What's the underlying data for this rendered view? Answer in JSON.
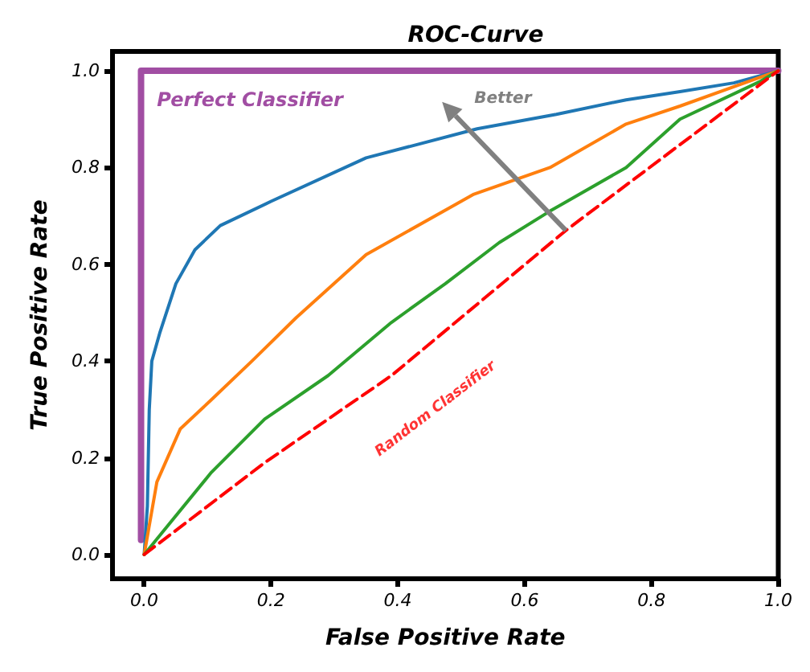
{
  "chart_data": {
    "type": "line",
    "title": "ROC-Curve",
    "xlabel": "False Positive Rate",
    "ylabel": "True Positive Rate",
    "xlim": [
      -0.05,
      1.0
    ],
    "ylim": [
      -0.05,
      1.04
    ],
    "xticks": [
      {
        "value": 0,
        "label": "0.0"
      },
      0.2,
      0.4,
      0.6,
      0.8,
      {
        "value": 1,
        "label": "1.0"
      }
    ],
    "yticks": [
      {
        "value": 0,
        "label": "0.0"
      },
      0.2,
      0.4,
      0.6,
      0.8,
      {
        "value": 1,
        "label": "1.0"
      }
    ],
    "grid": false,
    "legend": false,
    "marker": "none",
    "annotations": [
      {
        "text": "Better",
        "x": 0.665,
        "y": 0.67
      }
    ],
    "series": [
      {
        "name": "Perfect Classifier",
        "color": "#a14ea3",
        "x": [
          -0.005,
          -0.005,
          1.0
        ],
        "values": [
          0.03,
          1.0,
          1.0
        ]
      },
      {
        "color": "#1f77b4",
        "x": [
          0,
          0.005,
          0.008,
          0.012,
          0.025,
          0.05,
          0.08,
          0.12,
          0.2,
          0.35,
          0.525,
          0.65,
          0.76,
          0.845,
          0.93,
          1.0
        ],
        "values": [
          0,
          0.1,
          0.3,
          0.4,
          0.46,
          0.56,
          0.63,
          0.68,
          0.73,
          0.82,
          0.88,
          0.91,
          0.94,
          0.957,
          0.975,
          1.0
        ]
      },
      {
        "color": "#ff7f0e",
        "x": [
          0,
          0.02,
          0.057,
          0.106,
          0.17,
          0.24,
          0.35,
          0.52,
          0.64,
          0.76,
          0.845,
          0.93,
          1.0
        ],
        "values": [
          0,
          0.15,
          0.26,
          0.32,
          0.4,
          0.49,
          0.62,
          0.745,
          0.8,
          0.89,
          0.927,
          0.967,
          1.0
        ]
      },
      {
        "color": "#2ca02c",
        "x": [
          0,
          0.025,
          0.106,
          0.19,
          0.29,
          0.39,
          0.475,
          0.56,
          0.64,
          0.76,
          0.845,
          0.97,
          1.0
        ],
        "values": [
          0,
          0.04,
          0.17,
          0.28,
          0.37,
          0.48,
          0.56,
          0.645,
          0.71,
          0.8,
          0.9,
          0.977,
          1.0
        ]
      },
      {
        "name": "Random Classifier",
        "color": "#ff0000",
        "line_style": "dashed",
        "x": [
          0,
          0.19,
          0.39,
          0.665,
          1.0
        ],
        "values": [
          0,
          0.19,
          0.37,
          0.67,
          1.0
        ]
      }
    ]
  }
}
